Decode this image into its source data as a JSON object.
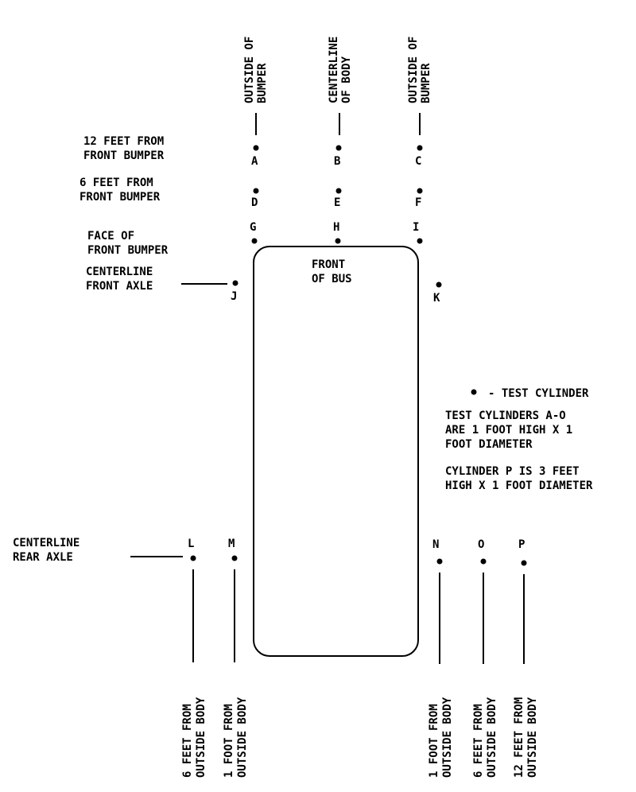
{
  "column_labels": {
    "left": [
      "OUTSIDE OF",
      "BUMPER"
    ],
    "center": [
      "CENTERLINE",
      "OF BODY"
    ],
    "right": [
      "OUTSIDE OF",
      "BUMPER"
    ]
  },
  "row_labels": {
    "twelve_feet": [
      "12 FEET FROM",
      "FRONT BUMPER"
    ],
    "six_feet": [
      "6 FEET FROM",
      "FRONT BUMPER"
    ],
    "face": [
      "FACE OF",
      "FRONT BUMPER"
    ],
    "front_axle": [
      "CENTERLINE",
      "FRONT AXLE"
    ],
    "rear_axle": [
      "CENTERLINE",
      "REAR AXLE"
    ]
  },
  "bus_label": [
    "FRONT",
    "OF BUS"
  ],
  "points": {
    "A": "A",
    "B": "B",
    "C": "C",
    "D": "D",
    "E": "E",
    "F": "F",
    "G": "G",
    "H": "H",
    "I": "I",
    "J": "J",
    "K": "K",
    "L": "L",
    "M": "M",
    "N": "N",
    "O": "O",
    "P": "P"
  },
  "bottom_labels": {
    "L": [
      "6 FEET FROM",
      "OUTSIDE BODY"
    ],
    "M": [
      "1 FOOT FROM",
      "OUTSIDE BODY"
    ],
    "N": [
      "1 FOOT FROM",
      "OUTSIDE BODY"
    ],
    "O": [
      "6 FEET FROM",
      "OUTSIDE BODY"
    ],
    "P": [
      "12 FEET FROM",
      "OUTSIDE BODY"
    ]
  },
  "legend": {
    "symbol_text": "- TEST CYLINDER",
    "note1": [
      "TEST CYLINDERS A-O",
      "ARE 1 FOOT HIGH X 1",
      "FOOT DIAMETER"
    ],
    "note2": [
      "CYLINDER P IS 3 FEET",
      "HIGH X 1 FOOT DIAMETER"
    ]
  }
}
